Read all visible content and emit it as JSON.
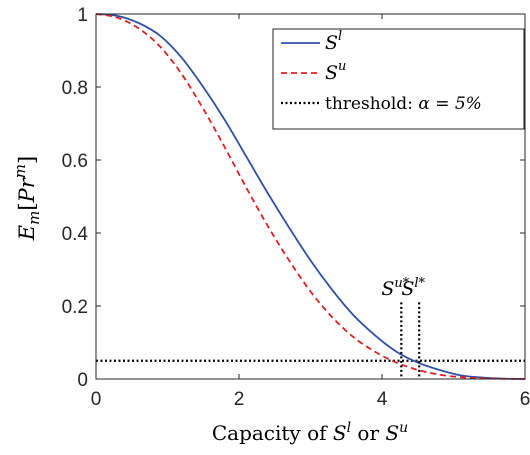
{
  "chart_data": {
    "type": "line",
    "xlabel": {
      "prefix": "Capacity of ",
      "v1": "S",
      "s1": "l",
      "mid": " or ",
      "v2": "S",
      "s2": "u"
    },
    "ylabel": {
      "base": "E",
      "sub": "m",
      "bracket_open": "[",
      "var": "Pr",
      "sup": "m",
      "bracket_close": "]"
    },
    "xlim": [
      0,
      6
    ],
    "ylim": [
      0,
      1
    ],
    "xticks": [
      "0",
      "2",
      "4",
      "6"
    ],
    "yticks": [
      "0",
      "0.2",
      "0.4",
      "0.6",
      "0.8",
      "1"
    ],
    "grid": false,
    "legend_position": "top-right",
    "series": [
      {
        "name": "S^l",
        "legend_var": "S",
        "legend_sup": "l",
        "color": "#3050a8",
        "dash": "solid",
        "x": [
          0,
          0.3,
          0.6,
          0.9,
          1.2,
          1.5,
          1.8,
          2.1,
          2.4,
          2.7,
          3.0,
          3.3,
          3.6,
          3.9,
          4.2,
          4.5,
          4.8,
          5.1,
          5.4,
          5.7,
          6.0
        ],
        "y": [
          1.0,
          0.995,
          0.975,
          0.94,
          0.88,
          0.8,
          0.71,
          0.61,
          0.51,
          0.415,
          0.325,
          0.245,
          0.175,
          0.12,
          0.075,
          0.045,
          0.025,
          0.01,
          0.004,
          0.001,
          0.0
        ]
      },
      {
        "name": "S^u",
        "legend_var": "S",
        "legend_sup": "u",
        "color": "#e02020",
        "dash": "dashed",
        "x": [
          0,
          0.3,
          0.6,
          0.9,
          1.2,
          1.5,
          1.8,
          2.1,
          2.4,
          2.7,
          3.0,
          3.3,
          3.6,
          3.9,
          4.2,
          4.5,
          4.8,
          5.1,
          5.4,
          5.7,
          6.0
        ],
        "y": [
          1.0,
          0.99,
          0.96,
          0.91,
          0.835,
          0.74,
          0.635,
          0.525,
          0.42,
          0.325,
          0.24,
          0.17,
          0.115,
          0.075,
          0.045,
          0.025,
          0.012,
          0.005,
          0.002,
          0.0005,
          0.0
        ]
      }
    ],
    "threshold": {
      "value": 0.05,
      "legend_text": "threshold: ",
      "legend_math": "α = 5%",
      "color": "#000000"
    },
    "markers": [
      {
        "x": 4.27,
        "var": "S",
        "sup": "u*"
      },
      {
        "x": 4.52,
        "var": "S",
        "sup": "l*"
      }
    ]
  }
}
